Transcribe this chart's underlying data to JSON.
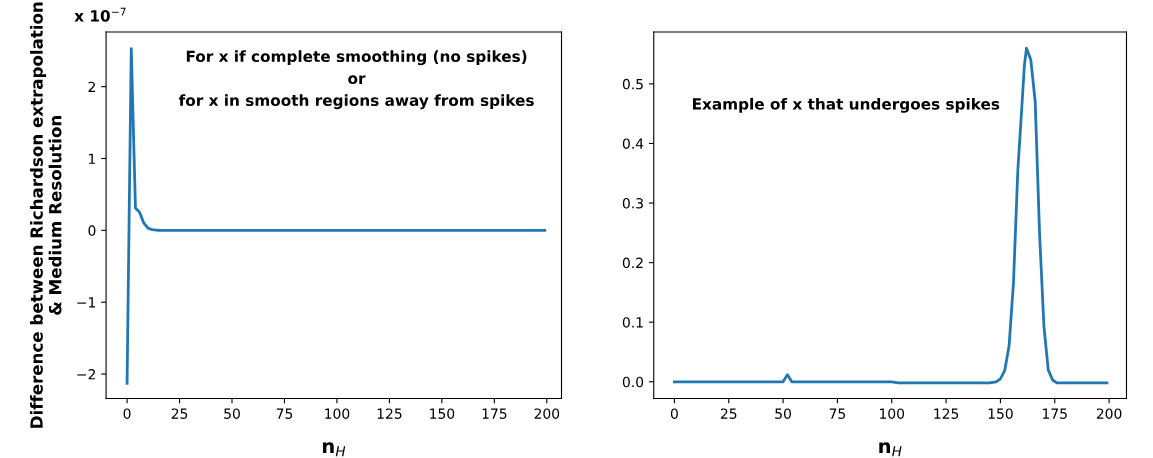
{
  "chart_data": [
    {
      "type": "line",
      "ylabel": "Difference between Richardson extrapolation\n& Medium Resolution",
      "xlabel": "n$_{H}$",
      "annotations": [
        "x 10$^{−7}$",
        "For x if complete smoothing (no spikes)",
        "or",
        "for x in smooth regions away from spikes"
      ],
      "series": [
        {
          "color": "#1f77b4",
          "x": [
            0,
            2,
            4,
            6,
            8,
            10,
            12,
            15,
            50,
            100,
            150,
            199
          ],
          "values": [
            -2.13,
            2.53,
            0.31,
            0.25,
            0.1,
            0.03,
            0.01,
            0,
            0,
            0,
            0,
            0
          ]
        }
      ],
      "xlim": [
        -10,
        207
      ],
      "xticks": [
        0,
        25,
        50,
        75,
        100,
        125,
        150,
        175,
        200
      ],
      "ylim": [
        -2.34,
        2.76
      ],
      "yticks": [
        {
          "value": -2,
          "label": "−2"
        },
        {
          "value": -1,
          "label": "−1"
        },
        0,
        1,
        2
      ],
      "grid": false,
      "line_style": "solid"
    },
    {
      "type": "line",
      "xlabel": "n$_{H}$",
      "annotations": [
        "Example of x that undergoes spikes"
      ],
      "series": [
        {
          "color": "#1f77b4",
          "x": [
            0,
            50,
            52,
            54,
            100,
            103,
            145,
            148,
            150,
            152,
            154,
            156,
            158,
            160,
            161,
            162,
            164,
            166,
            168,
            170,
            172,
            174,
            176,
            199
          ],
          "values": [
            0,
            0,
            0.012,
            0,
            0,
            -0.002,
            -0.002,
            0,
            0.005,
            0.019,
            0.061,
            0.166,
            0.354,
            0.47,
            0.53,
            0.56,
            0.54,
            0.47,
            0.25,
            0.094,
            0.02,
            0.003,
            -0.002,
            -0.002
          ]
        }
      ],
      "xlim": [
        -9.5,
        208
      ],
      "xticks": [
        0,
        25,
        50,
        75,
        100,
        125,
        150,
        175,
        200
      ],
      "ylim": [
        -0.028,
        0.587
      ],
      "yticks": [
        {
          "value": 0,
          "label": "0.0"
        },
        {
          "value": 0.1,
          "label": "0.1"
        },
        {
          "value": 0.2,
          "label": "0.2"
        },
        {
          "value": 0.3,
          "label": "0.3"
        },
        {
          "value": 0.4,
          "label": "0.4"
        },
        {
          "value": 0.5,
          "label": "0.5"
        }
      ],
      "grid": false,
      "line_style": "solid"
    }
  ]
}
